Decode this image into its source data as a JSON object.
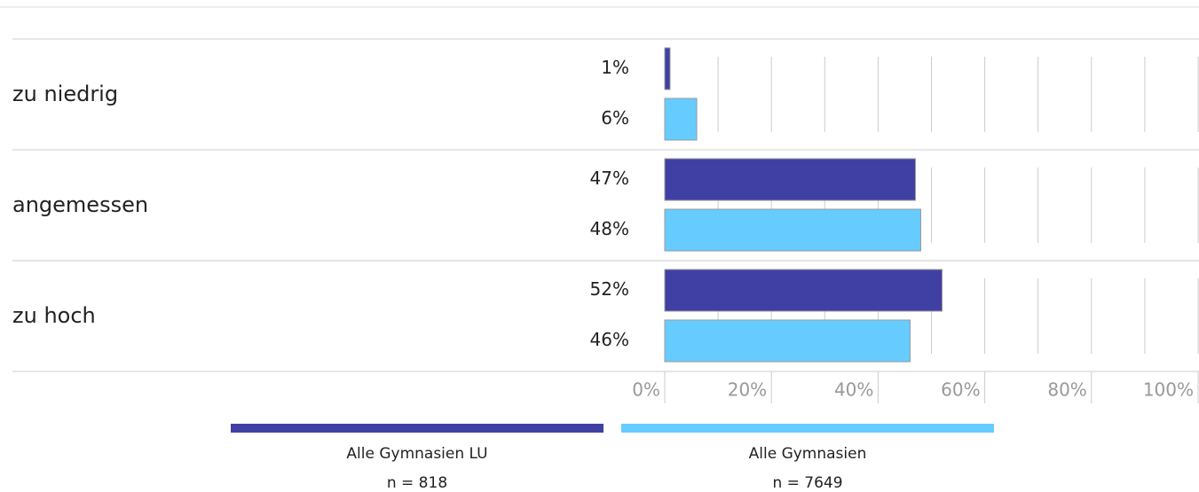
{
  "chart_data": {
    "type": "hbar",
    "categories": [
      "zu niedrig",
      "angemessen",
      "zu hoch"
    ],
    "series": [
      {
        "name": "Alle Gymnasien LU",
        "note": "n = 818",
        "color": "#4040a4",
        "values": [
          1,
          47,
          52
        ],
        "value_labels": [
          "1%",
          "47%",
          "52%"
        ]
      },
      {
        "name": "Alle Gymnasien",
        "note": "n = 7649",
        "color": "#66ccff",
        "values": [
          6,
          48,
          46
        ],
        "value_labels": [
          "6%",
          "48%",
          "46%"
        ]
      }
    ],
    "xlim": [
      0,
      100
    ],
    "xticks": [
      {
        "value": 0,
        "label": "0%"
      },
      {
        "value": 20,
        "label": "20%"
      },
      {
        "value": 40,
        "label": "40%"
      },
      {
        "value": 60,
        "label": "60%"
      },
      {
        "value": 80,
        "label": "80%"
      },
      {
        "value": 100,
        "label": "100%"
      }
    ],
    "xminorticks": [
      10,
      30,
      50,
      70,
      90
    ],
    "grid": true
  }
}
